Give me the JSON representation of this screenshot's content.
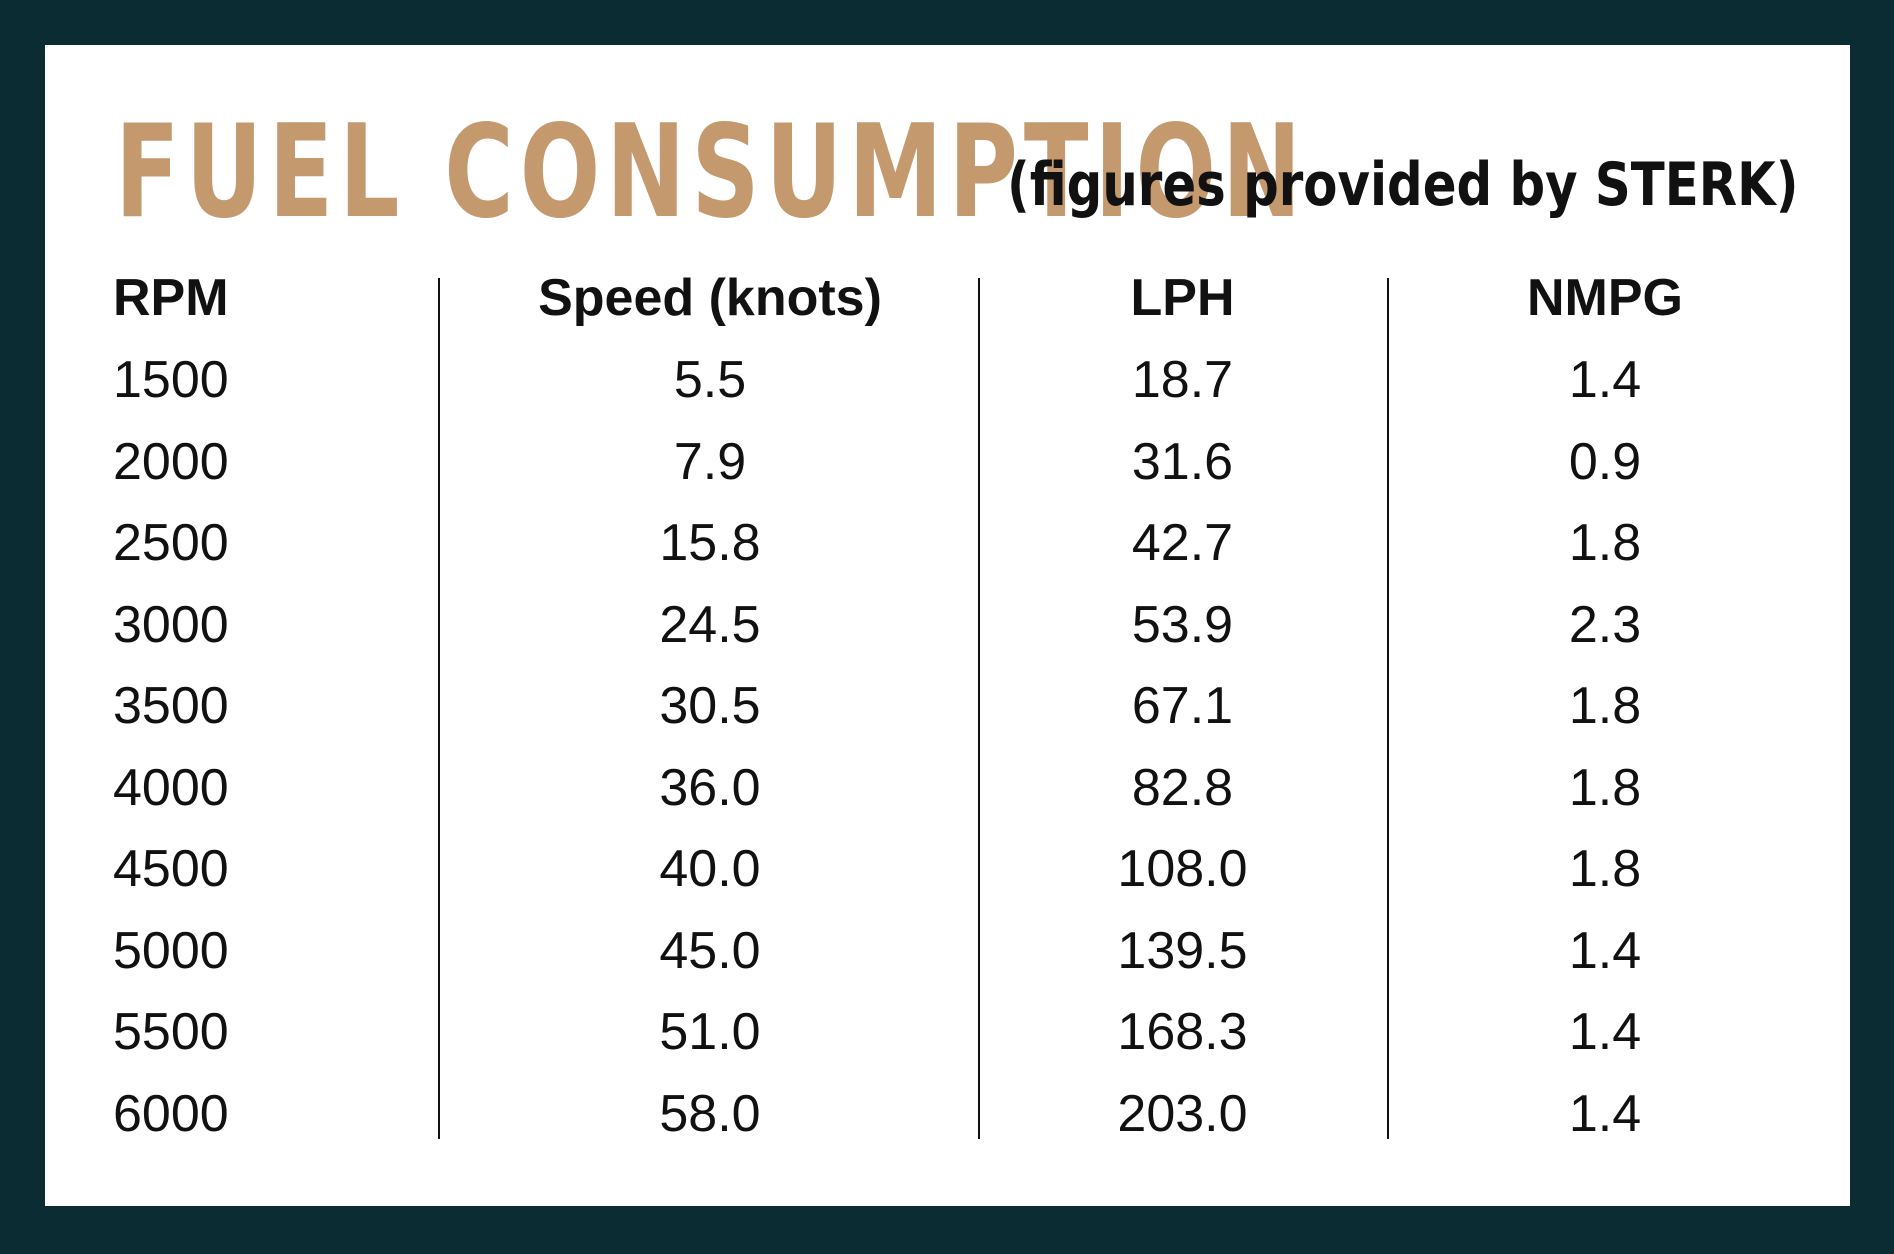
{
  "title": "FUEL CONSUMPTION",
  "subtitle": "(figures provided by STERK)",
  "colors": {
    "frame": "#0b2c33",
    "title": "#c4996d",
    "text": "#111111"
  },
  "chart_data": {
    "type": "table",
    "columns": [
      "RPM",
      "Speed (knots)",
      "LPH",
      "NMPG"
    ],
    "rows": [
      [
        "1500",
        "5.5",
        "18.7",
        "1.4"
      ],
      [
        "2000",
        "7.9",
        "31.6",
        "0.9"
      ],
      [
        "2500",
        "15.8",
        "42.7",
        "1.8"
      ],
      [
        "3000",
        "24.5",
        "53.9",
        "2.3"
      ],
      [
        "3500",
        "30.5",
        "67.1",
        "1.8"
      ],
      [
        "4000",
        "36.0",
        "82.8",
        "1.8"
      ],
      [
        "4500",
        "40.0",
        "108.0",
        "1.8"
      ],
      [
        "5000",
        "45.0",
        "139.5",
        "1.4"
      ],
      [
        "5500",
        "51.0",
        "168.3",
        "1.4"
      ],
      [
        "6000",
        "58.0",
        "203.0",
        "1.4"
      ]
    ]
  }
}
